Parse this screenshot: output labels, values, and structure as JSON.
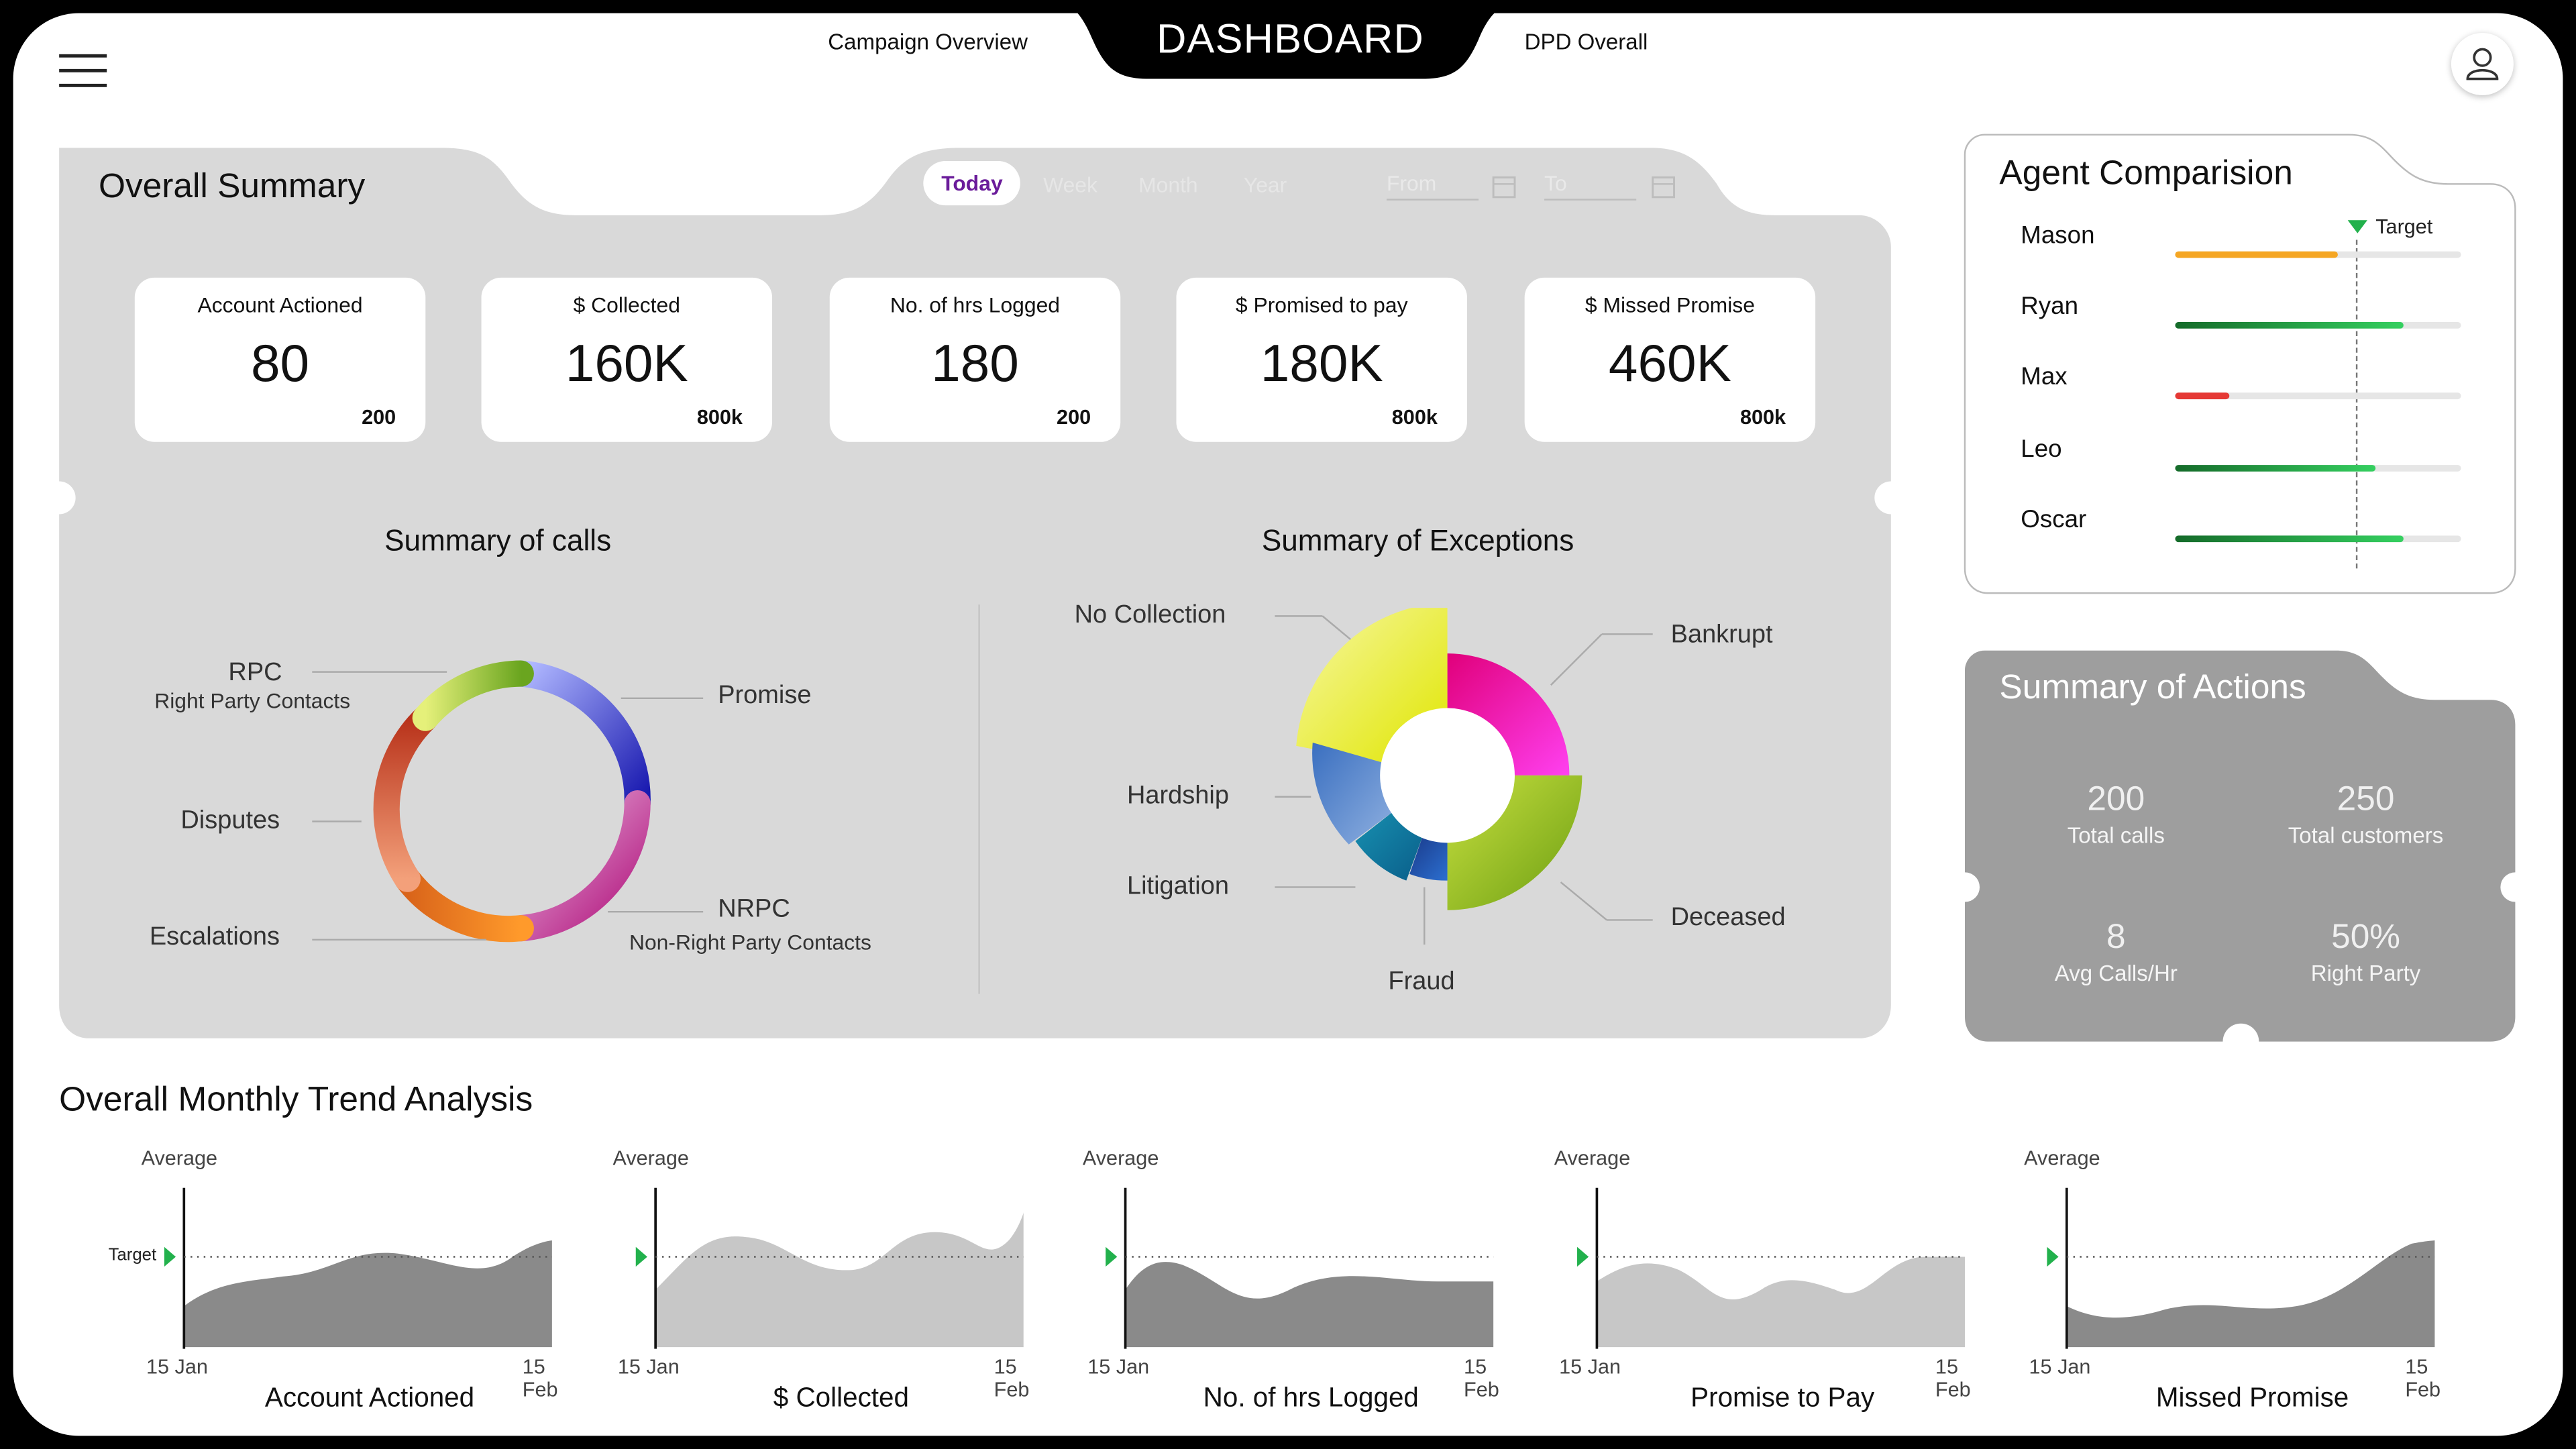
{
  "header": {
    "title": "DASHBOARD",
    "nav_left": "Campaign Overview",
    "nav_right": "DPD Overall"
  },
  "overall_summary": {
    "title": "Overall Summary",
    "periods": [
      "Today",
      "Week",
      "Month",
      "Year"
    ],
    "active_period": "Today",
    "from_placeholder": "From",
    "to_placeholder": "To",
    "kpis": [
      {
        "label": "Account Actioned",
        "value": "80",
        "target": "200"
      },
      {
        "label": "$ Collected",
        "value": "160K",
        "target": "800k"
      },
      {
        "label": "No. of hrs Logged",
        "value": "180",
        "target": "200"
      },
      {
        "label": "$ Promised to pay",
        "value": "180K",
        "target": "800k"
      },
      {
        "label": "$ Missed Promise",
        "value": "460K",
        "target": "800k"
      }
    ]
  },
  "summary_of_calls": {
    "title": "Summary of calls",
    "labels": {
      "rpc": "RPC",
      "rpc_sub": "Right Party Contacts",
      "promise": "Promise",
      "disputes": "Disputes",
      "nrpc": "NRPC",
      "nrpc_sub": "Non-Right Party Contacts",
      "escalations": "Escalations"
    }
  },
  "summary_of_exceptions": {
    "title": "Summary of Exceptions",
    "labels": {
      "no_collection": "No Collection",
      "bankrupt": "Bankrupt",
      "hardship": "Hardship",
      "litigation": "Litigation",
      "deceased": "Deceased",
      "fraud": "Fraud"
    }
  },
  "agent_comparison": {
    "title": "Agent Comparision",
    "target_label": "Target",
    "target_fraction": 0.63,
    "agents": [
      {
        "name": "Mason",
        "fraction": 0.57,
        "color": "#f5a623"
      },
      {
        "name": "Ryan",
        "fraction": 0.8,
        "color": "#1f9e3a"
      },
      {
        "name": "Max",
        "fraction": 0.19,
        "color": "#e53935"
      },
      {
        "name": "Leo",
        "fraction": 0.7,
        "color": "#1f9e3a"
      },
      {
        "name": "Oscar",
        "fraction": 0.8,
        "color": "#1f9e3a"
      }
    ]
  },
  "summary_of_actions": {
    "title": "Summary of Actions",
    "items": [
      {
        "value": "200",
        "label": "Total calls"
      },
      {
        "value": "250",
        "label": "Total customers"
      },
      {
        "value": "8",
        "label": "Avg Calls/Hr"
      },
      {
        "value": "50%",
        "label": "Right Party"
      }
    ]
  },
  "trend": {
    "title": "Overall Monthly Trend Analysis",
    "average_label": "Average",
    "target_label": "Target",
    "start_date": "15 Jan",
    "end_date": "15 Feb",
    "charts": [
      {
        "name": "Account Actioned"
      },
      {
        "name": "$ Collected"
      },
      {
        "name": "No. of hrs Logged"
      },
      {
        "name": "Promise to Pay"
      },
      {
        "name": "Missed Promise"
      }
    ]
  },
  "colors": {
    "panel_gray": "#d9d9d9",
    "actions_gray": "#9e9e9e",
    "header_black": "#000000",
    "target_green": "#22b14c"
  }
}
